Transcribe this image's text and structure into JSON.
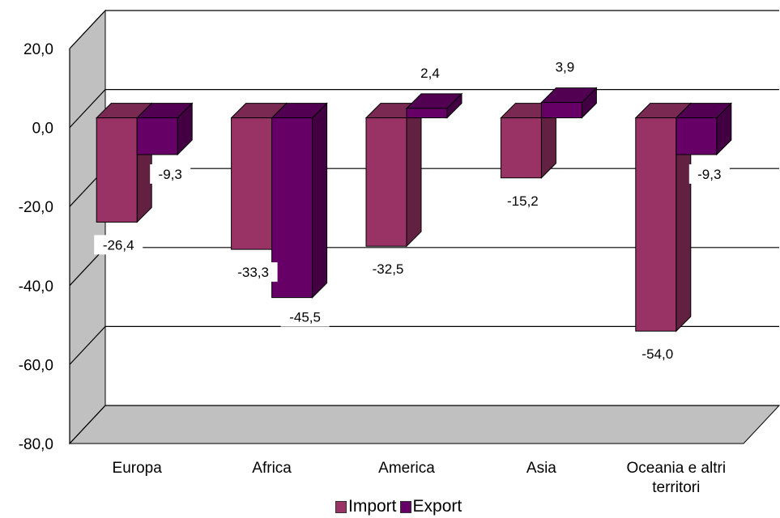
{
  "chart_data": {
    "type": "bar",
    "categories": [
      "Europa",
      "Africa",
      "America",
      "Asia",
      "Oceania e altri territori"
    ],
    "category_lines": [
      [
        "Europa"
      ],
      [
        "Africa"
      ],
      [
        "America"
      ],
      [
        "Asia"
      ],
      [
        "Oceania e altri",
        "territori"
      ]
    ],
    "series": [
      {
        "name": "Import",
        "values": [
          -26.4,
          -33.3,
          -32.5,
          -15.2,
          -54.0
        ],
        "labels": [
          "-26,4",
          "-33,3",
          "-32,5",
          "-15,2",
          "-54,0"
        ],
        "color": "#993366"
      },
      {
        "name": "Export",
        "values": [
          -9.3,
          -45.5,
          2.4,
          3.9,
          -9.3
        ],
        "labels": [
          "-9,3",
          "-45,5",
          "2,4",
          "3,9",
          "-9,3"
        ],
        "color": "#660066"
      }
    ],
    "yticks": [
      "20,0",
      "0,0",
      "-20,0",
      "-40,0",
      "-60,0",
      "-80,0"
    ],
    "ylim": [
      -80,
      20
    ],
    "grid": true,
    "legend_position": "bottom",
    "title": "",
    "xlabel": "",
    "ylabel": ""
  }
}
